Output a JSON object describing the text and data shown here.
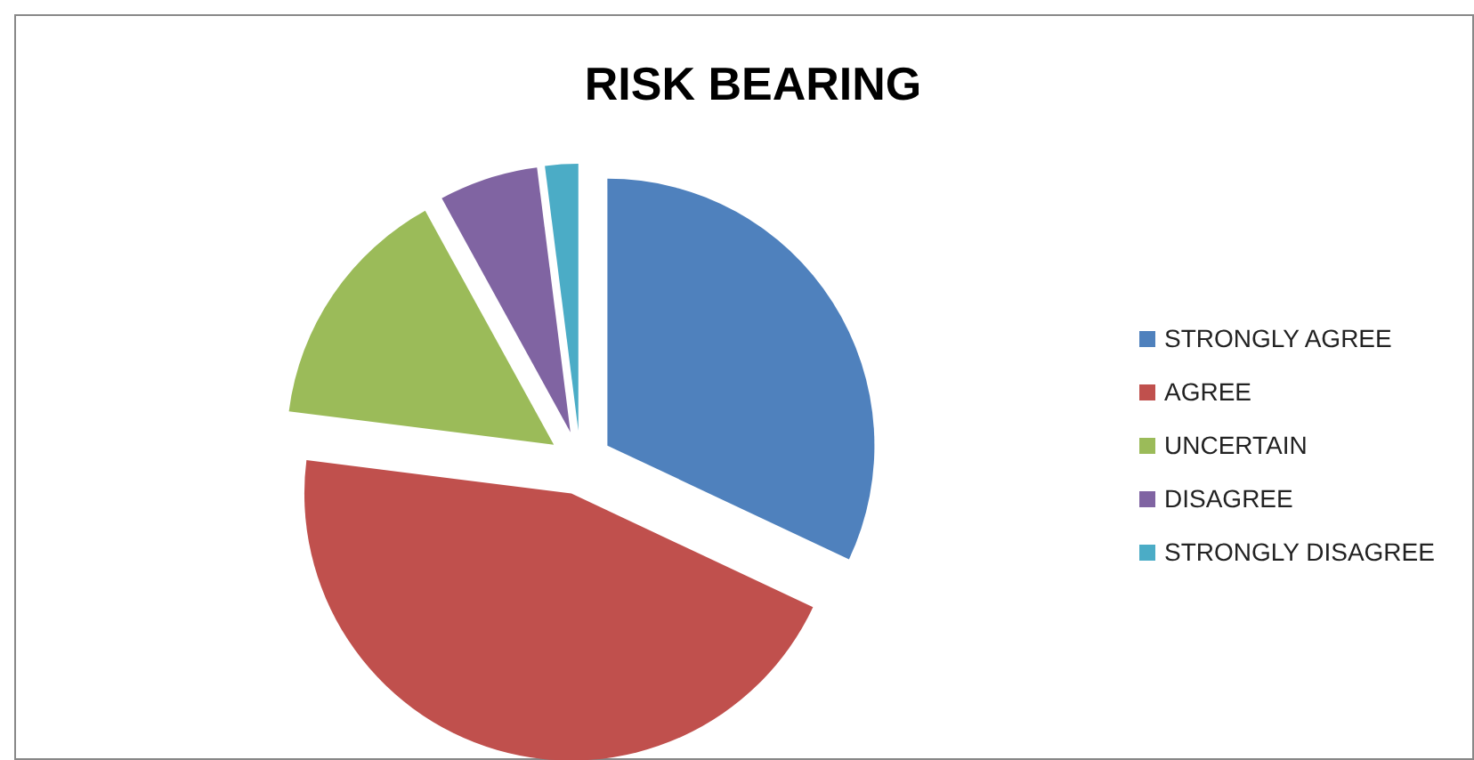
{
  "chart_data": {
    "type": "pie",
    "title": "RISK BEARING",
    "categories": [
      "STRONGLY AGREE",
      "AGREE",
      "UNCERTAIN",
      "DISAGREE",
      "STRONGLY DISAGREE"
    ],
    "values": [
      32,
      45,
      15,
      6,
      2
    ],
    "colors": [
      "#4f81bd",
      "#c0504d",
      "#9bbb59",
      "#8064a2",
      "#4bacc6"
    ],
    "legend": "right"
  }
}
